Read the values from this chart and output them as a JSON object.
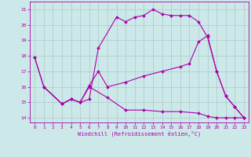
{
  "xlabel": "Windchill (Refroidissement éolien,°C)",
  "bg_color": "#cce8e8",
  "grid_color": "#aacccc",
  "line_color": "#aa00aa",
  "xlim": [
    -0.5,
    23.5
  ],
  "ylim": [
    13.7,
    21.5
  ],
  "xticks": [
    0,
    1,
    2,
    3,
    4,
    5,
    6,
    7,
    8,
    9,
    10,
    11,
    12,
    13,
    14,
    15,
    16,
    17,
    18,
    19,
    20,
    21,
    22,
    23
  ],
  "yticks": [
    14,
    15,
    16,
    17,
    18,
    19,
    20,
    21
  ],
  "line1_x": [
    0,
    1,
    3,
    4,
    5,
    6,
    7,
    9,
    10,
    11,
    12,
    13,
    14,
    15,
    16,
    17,
    18,
    19,
    20,
    21,
    22,
    23
  ],
  "line1_y": [
    17.9,
    16.0,
    14.9,
    15.2,
    15.0,
    15.2,
    18.5,
    20.5,
    20.2,
    20.5,
    20.6,
    21.0,
    20.7,
    20.6,
    20.6,
    20.6,
    20.2,
    19.2,
    17.0,
    15.4,
    14.7,
    14.0
  ],
  "line2_x": [
    0,
    1,
    3,
    4,
    5,
    6,
    7,
    8,
    10,
    12,
    14,
    16,
    17,
    18,
    19,
    20,
    21,
    22,
    23
  ],
  "line2_y": [
    17.9,
    16.0,
    14.9,
    15.2,
    15.0,
    16.1,
    17.0,
    16.0,
    16.3,
    16.7,
    17.0,
    17.3,
    17.5,
    18.9,
    19.3,
    17.0,
    15.4,
    14.7,
    14.0
  ],
  "line3_x": [
    1,
    3,
    4,
    5,
    6,
    8,
    10,
    12,
    14,
    16,
    18,
    19,
    20,
    21,
    22,
    23
  ],
  "line3_y": [
    16.0,
    14.9,
    15.2,
    15.0,
    16.0,
    15.3,
    14.5,
    14.5,
    14.4,
    14.4,
    14.3,
    14.1,
    14.0,
    14.0,
    14.0,
    14.0
  ]
}
